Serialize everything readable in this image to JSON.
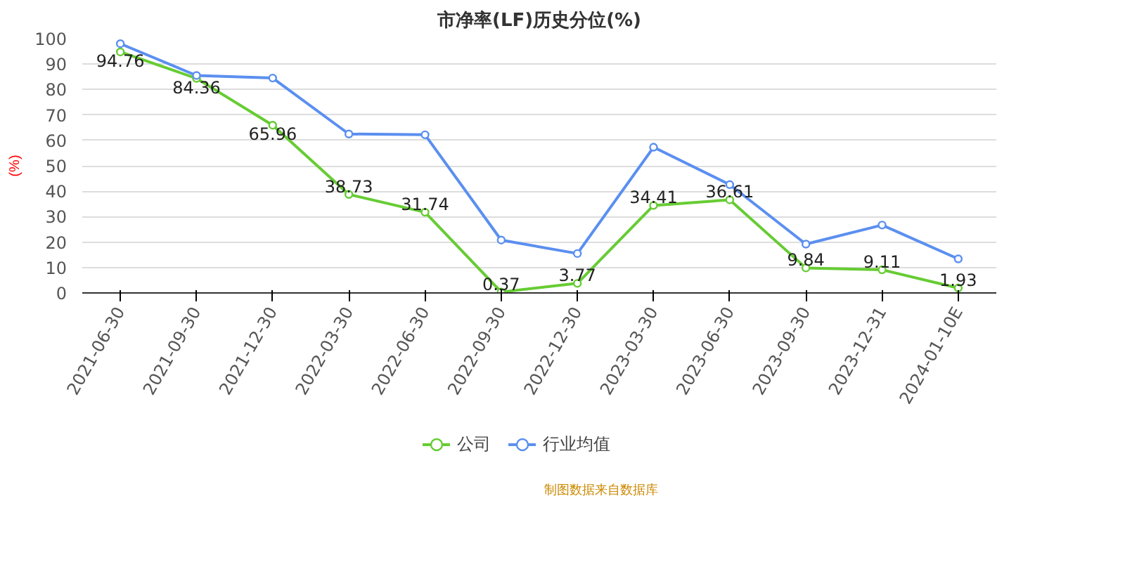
{
  "chart_data": {
    "type": "line",
    "title": "市净率(LF)历史分位(%)",
    "ylabel": "(%)",
    "categories": [
      "2021-06-30",
      "2021-09-30",
      "2021-12-30",
      "2022-03-30",
      "2022-06-30",
      "2022-09-30",
      "2022-12-30",
      "2023-03-30",
      "2023-06-30",
      "2023-09-30",
      "2023-12-31",
      "2024-01-10E"
    ],
    "series": [
      {
        "name": "公司",
        "color": "#66cc33",
        "values": [
          94.76,
          84.36,
          65.96,
          38.73,
          31.74,
          0.37,
          3.77,
          34.41,
          36.61,
          9.84,
          9.11,
          1.93
        ],
        "data_labels": true
      },
      {
        "name": "行业均值",
        "color": "#5b8ff0",
        "values": [
          98,
          85.5,
          84.5,
          62.5,
          62.2,
          20.8,
          15.5,
          57.3,
          42.6,
          19.2,
          26.7,
          13.4
        ]
      }
    ],
    "ylim": [
      0,
      100
    ],
    "yticks": [
      0,
      10,
      20,
      30,
      40,
      50,
      60,
      70,
      80,
      90,
      100
    ],
    "grid": "y",
    "legend": "bottom",
    "marker": "circle",
    "line_style": "solid",
    "annotations": [
      "制图数据来自数据库"
    ]
  }
}
